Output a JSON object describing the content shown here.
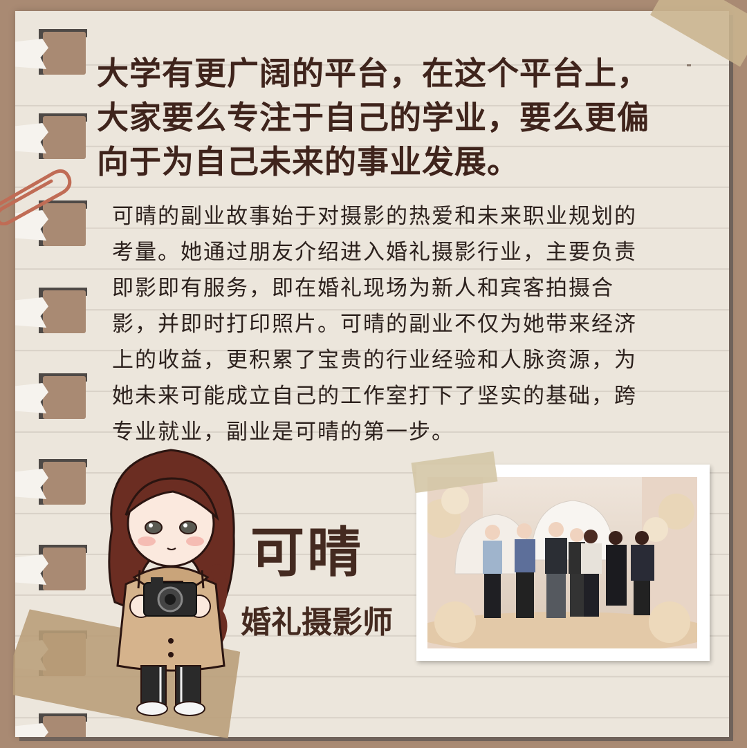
{
  "headline": [
    "大学有更广阔的平台，在这个平台上，",
    "大家要么专注于自己的学业，要么更偏",
    "向于为自己未来的事业发展。"
  ],
  "body": [
    "可晴的副业故事始于对摄影的热爱和未来职业规划的",
    "考量。她通过朋友介绍进入婚礼摄影行业，主要负责",
    "即影即有服务，即在婚礼现场为新人和宾客拍摄合",
    "影，并即时打印照片。可晴的副业不仅为她带来经济",
    "上的收益，更积累了宝贵的行业经验和人脉资源，为",
    "她未来可能成立自己的工作室打下了坚实的基础，跨",
    "专业就业，副业是可晴的第一步。"
  ],
  "profile": {
    "name": "可晴",
    "role": "婚礼摄影师"
  },
  "colors": {
    "background": "#a98a73",
    "paper": "#ece6dc",
    "headline": "#3f241c",
    "accent": "#442a20"
  },
  "icons": {
    "clip": "paperclip-icon",
    "camera": "camera-icon"
  }
}
